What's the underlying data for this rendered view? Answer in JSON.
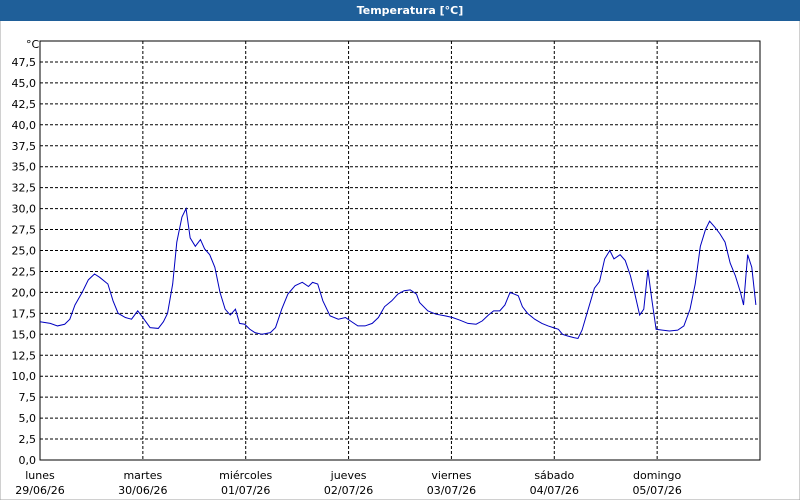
{
  "chart_data": {
    "type": "line",
    "title": "Temperatura [°C]",
    "y_label": "°C",
    "x": [
      0,
      0.1,
      0.17,
      0.24,
      0.29,
      0.34,
      0.41,
      0.47,
      0.53,
      0.58,
      0.66,
      0.71,
      0.76,
      0.83,
      0.89,
      0.95,
      1.0,
      1.07,
      1.15,
      1.2,
      1.24,
      1.29,
      1.33,
      1.38,
      1.42,
      1.46,
      1.51,
      1.56,
      1.6,
      1.65,
      1.7,
      1.75,
      1.8,
      1.85,
      1.9,
      1.94,
      1.99,
      2.04,
      2.09,
      2.16,
      2.24,
      2.29,
      2.35,
      2.41,
      2.48,
      2.55,
      2.61,
      2.65,
      2.7,
      2.75,
      2.82,
      2.9,
      2.97,
      3.03,
      3.09,
      3.16,
      3.23,
      3.29,
      3.35,
      3.42,
      3.48,
      3.54,
      3.6,
      3.66,
      3.69,
      3.77,
      3.85,
      3.94,
      4.01,
      4.08,
      4.16,
      4.24,
      4.3,
      4.36,
      4.41,
      4.47,
      4.52,
      4.57,
      4.61,
      4.65,
      4.69,
      4.74,
      4.81,
      4.88,
      4.94,
      4.99,
      5.04,
      5.08,
      5.13,
      5.19,
      5.23,
      5.27,
      5.33,
      5.39,
      5.44,
      5.49,
      5.54,
      5.58,
      5.64,
      5.69,
      5.74,
      5.78,
      5.83,
      5.87,
      5.91,
      5.95,
      5.99,
      6.05,
      6.12,
      6.2,
      6.26,
      6.32,
      6.37,
      6.42,
      6.47,
      6.51,
      6.56,
      6.61,
      6.66,
      6.71,
      6.76,
      6.81,
      6.84,
      6.88,
      6.92,
      6.96
    ],
    "series": [
      {
        "name": "Temperatura",
        "color": "#0000c0",
        "values": [
          16.5,
          16.3,
          16.0,
          16.2,
          16.8,
          18.5,
          20.0,
          21.5,
          22.2,
          21.8,
          21.0,
          19.0,
          17.5,
          17.0,
          16.8,
          17.8,
          17.0,
          15.8,
          15.7,
          16.5,
          17.5,
          21.0,
          26.0,
          29.0,
          30.0,
          26.5,
          25.5,
          26.3,
          25.2,
          24.5,
          23.0,
          20.0,
          18.0,
          17.3,
          18.0,
          16.3,
          16.2,
          15.6,
          15.2,
          15.0,
          15.2,
          15.8,
          18.0,
          19.8,
          20.8,
          21.2,
          20.7,
          21.2,
          21.0,
          19.0,
          17.2,
          16.8,
          17.0,
          16.5,
          16.0,
          16.0,
          16.3,
          17.0,
          18.3,
          19.0,
          19.8,
          20.2,
          20.3,
          19.8,
          18.8,
          17.8,
          17.4,
          17.2,
          17.0,
          16.7,
          16.3,
          16.2,
          16.6,
          17.3,
          17.8,
          17.8,
          18.5,
          20.0,
          19.8,
          19.6,
          18.3,
          17.5,
          16.8,
          16.3,
          16.0,
          15.8,
          15.6,
          15.0,
          14.8,
          14.6,
          14.5,
          15.5,
          18.0,
          20.5,
          21.3,
          24.0,
          25.0,
          24.0,
          24.5,
          23.8,
          22.0,
          20.0,
          17.3,
          18.0,
          22.7,
          19.0,
          15.6,
          15.5,
          15.4,
          15.5,
          16.0,
          18.0,
          21.0,
          25.5,
          27.5,
          28.5,
          27.8,
          27.0,
          26.0,
          23.5,
          22.0,
          20.0,
          18.5,
          24.5,
          23.0,
          18.5
        ]
      }
    ],
    "xlim": [
      0,
      7
    ],
    "xticks": [
      {
        "value": 0,
        "label": "lunes",
        "date": "29/06/26"
      },
      {
        "value": 1,
        "label": "martes",
        "date": "30/06/26"
      },
      {
        "value": 2,
        "label": "miércoles",
        "date": "01/07/26"
      },
      {
        "value": 3,
        "label": "jueves",
        "date": "02/07/26"
      },
      {
        "value": 4,
        "label": "viernes",
        "date": "03/07/26"
      },
      {
        "value": 5,
        "label": "sábado",
        "date": "04/07/26"
      },
      {
        "value": 6,
        "label": "domingo",
        "date": "05/07/26"
      }
    ],
    "ylim": [
      0,
      50
    ],
    "yticks": [
      {
        "value": 0,
        "label": "0,0"
      },
      {
        "value": 2.5,
        "label": "2,5"
      },
      {
        "value": 5,
        "label": "5,0"
      },
      {
        "value": 7.5,
        "label": "7,5"
      },
      {
        "value": 10,
        "label": "10,0"
      },
      {
        "value": 12.5,
        "label": "12,5"
      },
      {
        "value": 15,
        "label": "15,0"
      },
      {
        "value": 17.5,
        "label": "17,5"
      },
      {
        "value": 20,
        "label": "20,0"
      },
      {
        "value": 22.5,
        "label": "22,5"
      },
      {
        "value": 25,
        "label": "25,0"
      },
      {
        "value": 27.5,
        "label": "27,5"
      },
      {
        "value": 30,
        "label": "30,0"
      },
      {
        "value": 32.5,
        "label": "32,5"
      },
      {
        "value": 35,
        "label": "35,0"
      },
      {
        "value": 37.5,
        "label": "37,5"
      },
      {
        "value": 40,
        "label": "40,0"
      },
      {
        "value": 42.5,
        "label": "42,5"
      },
      {
        "value": 45,
        "label": "45,0"
      },
      {
        "value": 47.5,
        "label": "47,5"
      }
    ],
    "grid": true
  }
}
